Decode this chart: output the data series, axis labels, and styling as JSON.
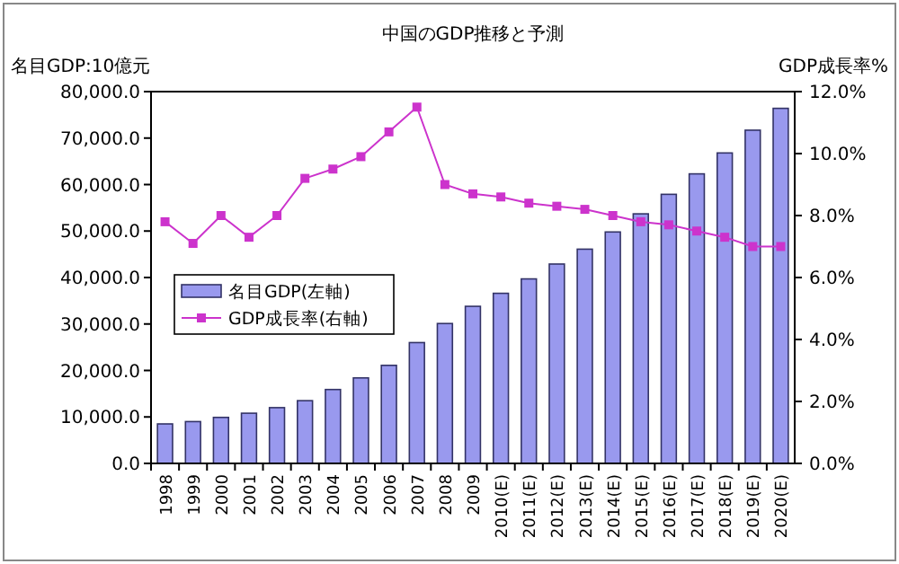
{
  "chart_data": {
    "type": "bar",
    "title": "中国のGDP推移と予測",
    "ylabel": "名目GDP:10億元",
    "y2label": "GDP成長率%",
    "categories": [
      "1998",
      "1999",
      "2000",
      "2001",
      "2002",
      "2003",
      "2004",
      "2005",
      "2006",
      "2007",
      "2008",
      "2009",
      "2010(E)",
      "2011(E)",
      "2012(E)",
      "2013(E)",
      "2014(E)",
      "2015(E)",
      "2016(E)",
      "2017(E)",
      "2018(E)",
      "2019(E)",
      "2020(E)"
    ],
    "series": [
      {
        "name": "名目GDP(左軸)",
        "color": "#9999ee",
        "values": [
          8500,
          9000,
          9900,
          10800,
          12000,
          13500,
          15900,
          18400,
          21100,
          26000,
          30100,
          33800,
          36600,
          39700,
          42900,
          46100,
          49800,
          53700,
          57900,
          62300,
          66800,
          71700,
          76400
        ]
      },
      {
        "name": "GDP成長率(右軸)",
        "type": "line",
        "axis": "y2",
        "color": "#cc33cc",
        "marker": "square",
        "values": [
          7.8,
          7.1,
          8.0,
          7.3,
          8.0,
          9.2,
          9.5,
          9.9,
          10.7,
          11.5,
          9.0,
          8.7,
          8.6,
          8.4,
          8.3,
          8.2,
          8.0,
          7.8,
          7.7,
          7.5,
          7.3,
          7.0,
          7.0
        ]
      }
    ],
    "ylim": [
      0,
      80000
    ],
    "yticks": [
      {
        "value": 0,
        "label": "0.0"
      },
      {
        "value": 10000,
        "label": "10,000.0"
      },
      {
        "value": 20000,
        "label": "20,000.0"
      },
      {
        "value": 30000,
        "label": "30,000.0"
      },
      {
        "value": 40000,
        "label": "40,000.0"
      },
      {
        "value": 50000,
        "label": "50,000.0"
      },
      {
        "value": 60000,
        "label": "60,000.0"
      },
      {
        "value": 70000,
        "label": "70,000.0"
      },
      {
        "value": 80000,
        "label": "80,000.0"
      }
    ],
    "y2lim": [
      0,
      12
    ],
    "y2ticks": [
      {
        "value": 0,
        "label": "0.0%"
      },
      {
        "value": 2,
        "label": "2.0%"
      },
      {
        "value": 4,
        "label": "4.0%"
      },
      {
        "value": 6,
        "label": "6.0%"
      },
      {
        "value": 8,
        "label": "8.0%"
      },
      {
        "value": 10,
        "label": "10.0%"
      },
      {
        "value": 12,
        "label": "12.0%"
      }
    ],
    "legend": "left",
    "grid": false
  }
}
